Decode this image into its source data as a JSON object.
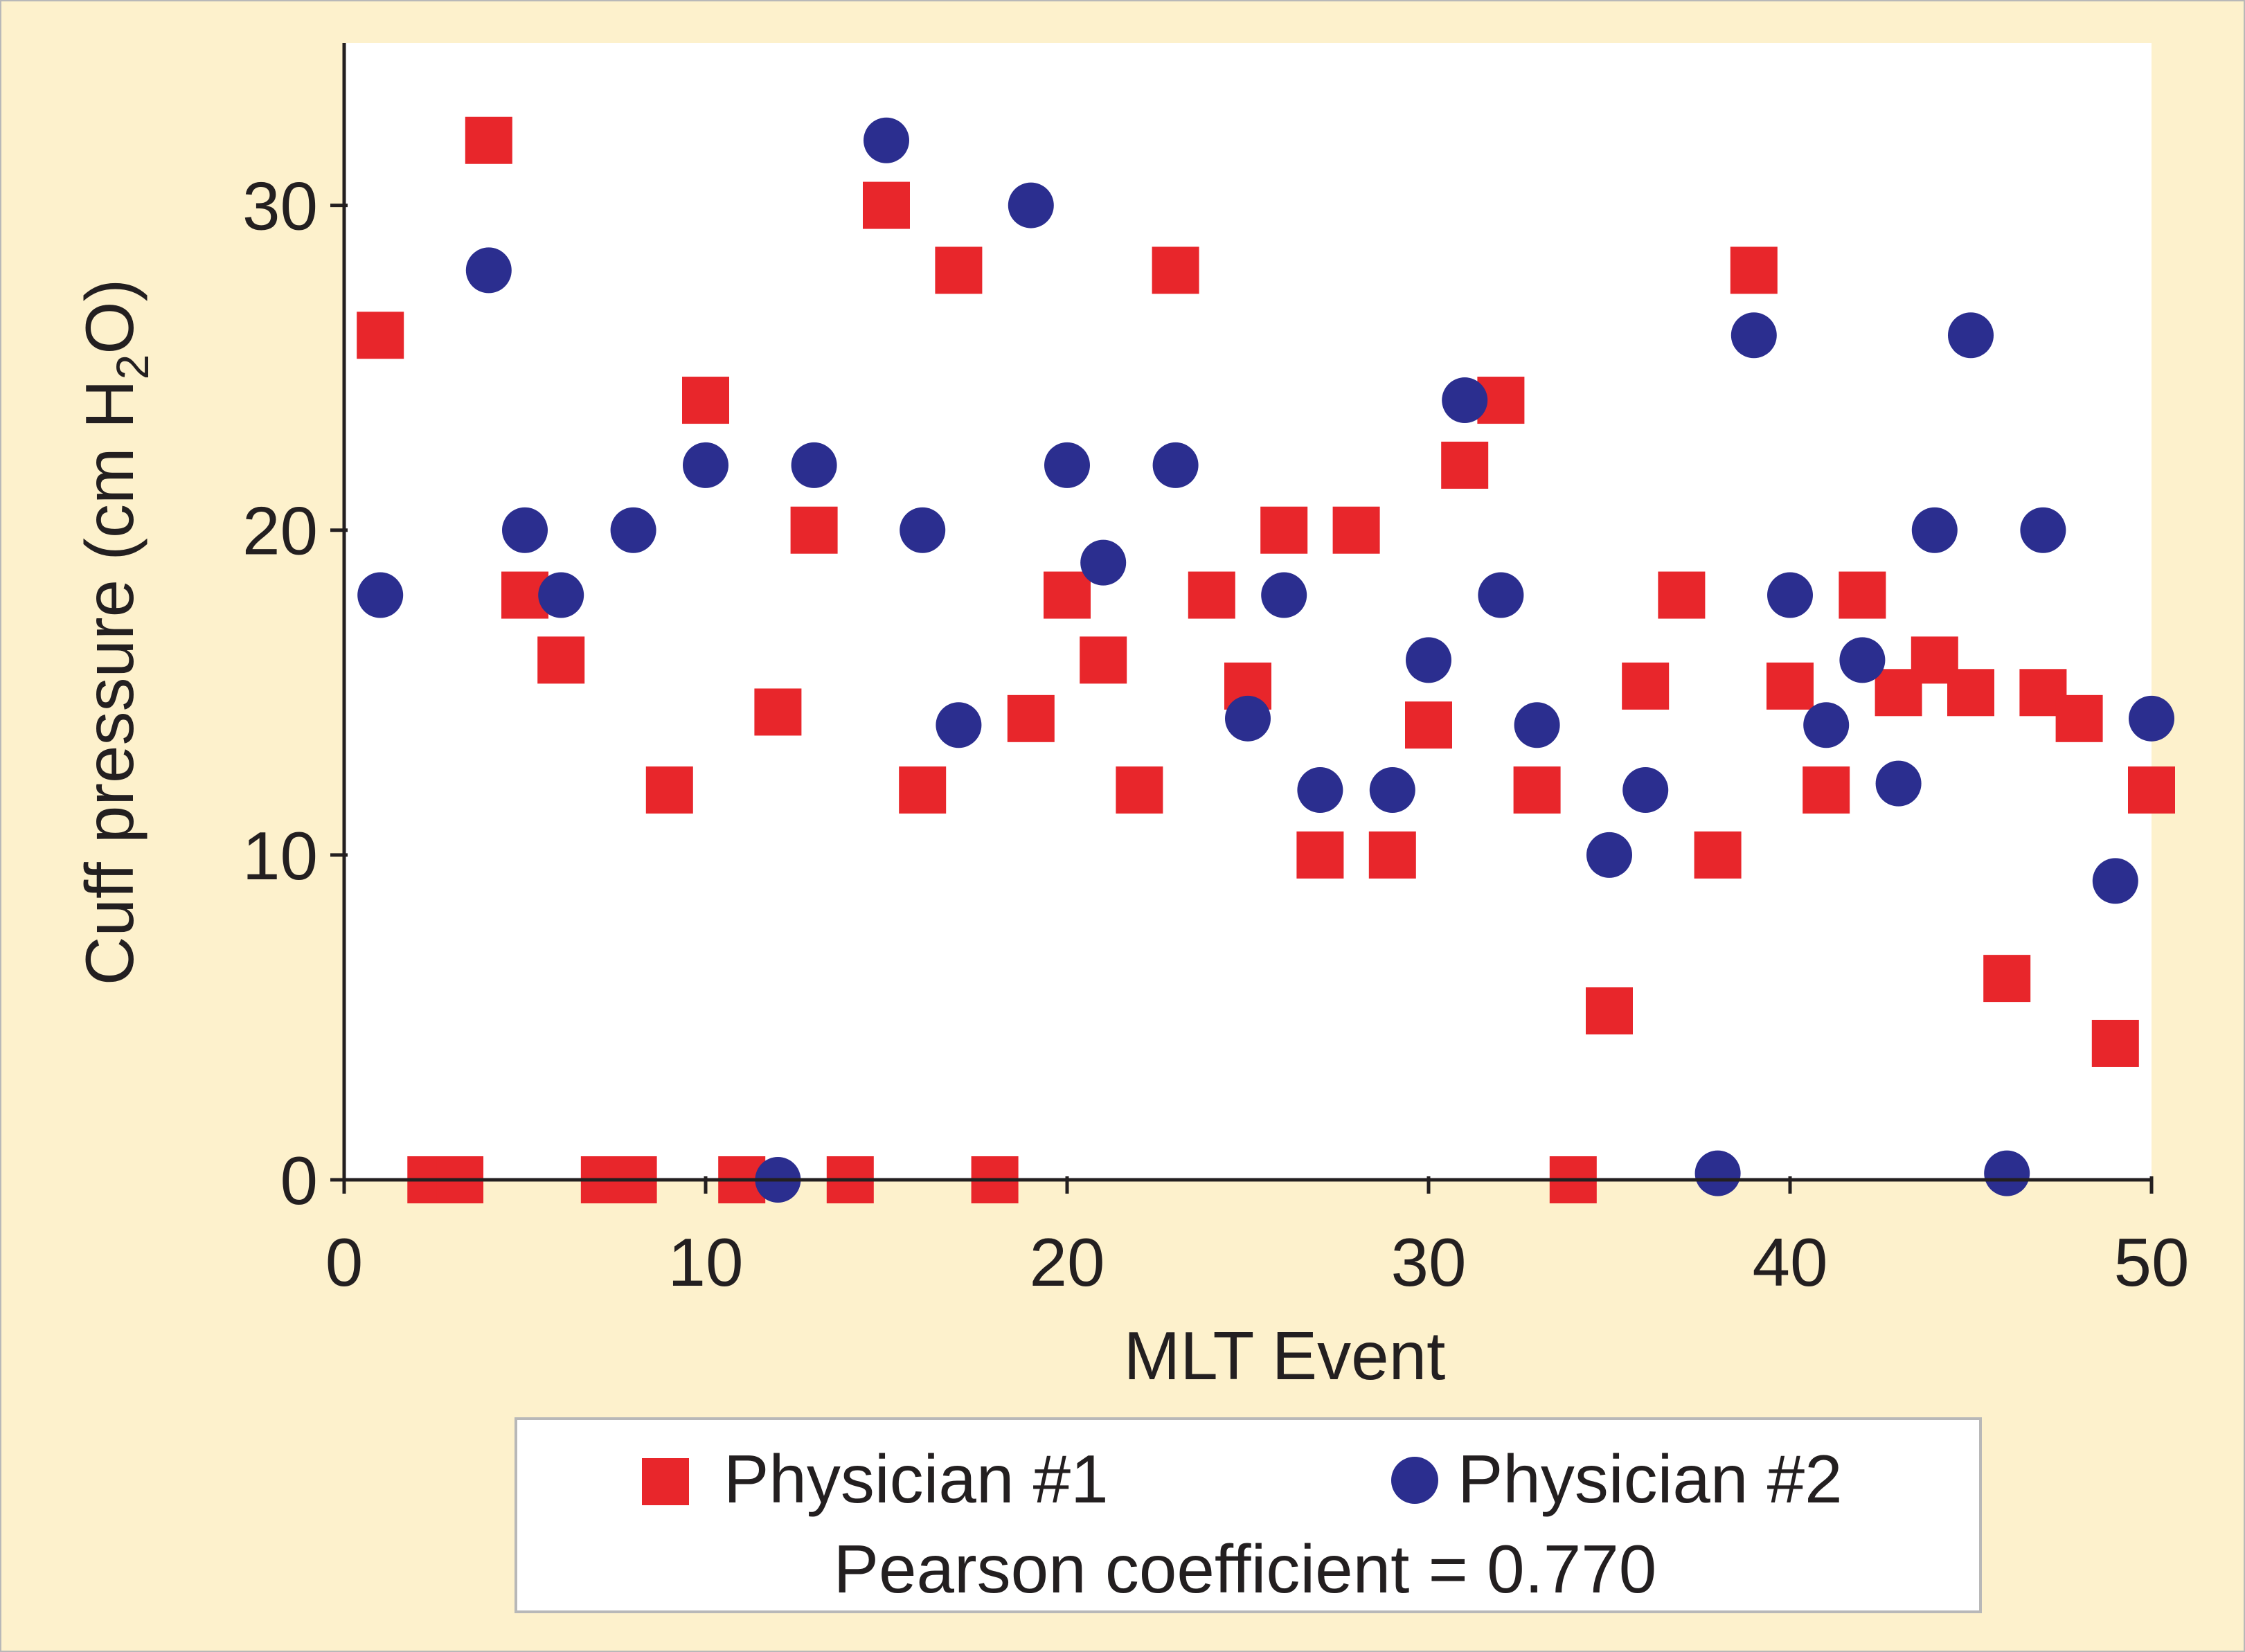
{
  "chart_data": {
    "type": "scatter",
    "xlabel": "MLT Event",
    "ylabel": {
      "prefix": "Cuff pressure (cm H",
      "subscript": "2",
      "suffix": "O)"
    },
    "xlim": [
      0,
      50
    ],
    "ylim": [
      0,
      35
    ],
    "xticks": [
      0,
      10,
      20,
      30,
      40,
      50
    ],
    "yticks": [
      0,
      10,
      20,
      30
    ],
    "grid": false,
    "legend_position": "bottom",
    "annotation": "Pearson coefficient = 0.770",
    "series": [
      {
        "name": "Physician #1",
        "marker": "square",
        "color": "#e8262b",
        "points": [
          [
            1,
            26
          ],
          [
            2.4,
            0
          ],
          [
            3.2,
            0
          ],
          [
            4,
            32
          ],
          [
            5,
            18
          ],
          [
            6,
            16
          ],
          [
            7.2,
            0
          ],
          [
            8,
            0
          ],
          [
            9,
            12
          ],
          [
            10,
            24
          ],
          [
            11,
            0
          ],
          [
            12,
            14.4
          ],
          [
            13,
            20
          ],
          [
            14,
            0
          ],
          [
            15,
            30
          ],
          [
            16,
            12
          ],
          [
            17,
            28
          ],
          [
            18,
            0
          ],
          [
            19,
            14.2
          ],
          [
            20,
            18
          ],
          [
            21,
            16
          ],
          [
            22,
            12
          ],
          [
            23,
            28
          ],
          [
            24,
            18
          ],
          [
            25,
            15.2
          ],
          [
            26,
            20
          ],
          [
            27,
            10
          ],
          [
            28,
            20
          ],
          [
            29,
            10
          ],
          [
            30,
            14
          ],
          [
            31,
            22
          ],
          [
            32,
            24
          ],
          [
            33,
            12
          ],
          [
            34,
            0
          ],
          [
            35,
            5.2
          ],
          [
            36,
            15.2
          ],
          [
            37,
            18
          ],
          [
            38,
            10
          ],
          [
            39,
            28
          ],
          [
            40,
            15.2
          ],
          [
            41,
            12
          ],
          [
            42,
            18
          ],
          [
            43,
            15
          ],
          [
            44,
            16
          ],
          [
            45,
            15
          ],
          [
            46,
            6.2
          ],
          [
            47,
            15
          ],
          [
            48,
            14.2
          ],
          [
            49,
            4.2
          ],
          [
            50,
            12
          ]
        ]
      },
      {
        "name": "Physician #2",
        "marker": "circle",
        "color": "#2b2e8f",
        "points": [
          [
            1,
            18
          ],
          [
            4,
            28
          ],
          [
            5,
            20
          ],
          [
            6,
            18
          ],
          [
            8,
            20
          ],
          [
            10,
            22
          ],
          [
            12,
            0
          ],
          [
            13,
            22
          ],
          [
            15,
            32
          ],
          [
            16,
            20
          ],
          [
            17,
            14
          ],
          [
            19,
            30
          ],
          [
            20,
            22
          ],
          [
            21,
            19
          ],
          [
            23,
            22
          ],
          [
            25,
            14.2
          ],
          [
            26,
            18
          ],
          [
            27,
            12
          ],
          [
            29,
            12
          ],
          [
            30,
            16
          ],
          [
            31,
            24
          ],
          [
            32,
            18
          ],
          [
            33,
            14
          ],
          [
            35,
            10
          ],
          [
            36,
            12
          ],
          [
            38,
            0.2
          ],
          [
            39,
            26
          ],
          [
            40,
            18
          ],
          [
            41,
            14
          ],
          [
            42,
            16
          ],
          [
            43,
            12.2
          ],
          [
            44,
            20
          ],
          [
            45,
            26
          ],
          [
            46,
            0.2
          ],
          [
            47,
            20
          ],
          [
            49,
            9.2
          ],
          [
            50,
            14.2
          ]
        ]
      }
    ]
  }
}
